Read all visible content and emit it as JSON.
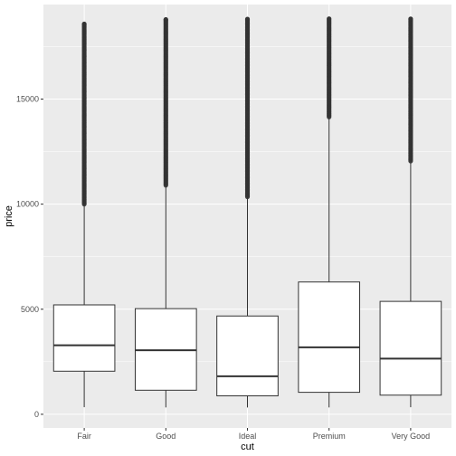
{
  "chart_data": {
    "type": "boxplot",
    "xlabel": "cut",
    "ylabel": "price",
    "ylim": [
      -650,
      19500
    ],
    "y_ticks": [
      0,
      5000,
      10000,
      15000
    ],
    "y_tick_labels": [
      "0",
      "5000",
      "10000",
      "15000"
    ],
    "categories": [
      "Fair",
      "Good",
      "Ideal",
      "Premium",
      "Very Good"
    ],
    "boxes": [
      {
        "category": "Fair",
        "whisker_low": 337,
        "q1": 2050,
        "median": 3282,
        "q3": 5206,
        "whisker_high": 9960,
        "outlier_min": 10000,
        "outlier_max": 18574
      },
      {
        "category": "Good",
        "whisker_low": 327,
        "q1": 1145,
        "median": 3050,
        "q3": 5028,
        "whisker_high": 10850,
        "outlier_min": 10900,
        "outlier_max": 18788
      },
      {
        "category": "Ideal",
        "whisker_low": 326,
        "q1": 878,
        "median": 1810,
        "q3": 4678,
        "whisker_high": 10350,
        "outlier_min": 10350,
        "outlier_max": 18806
      },
      {
        "category": "Premium",
        "whisker_low": 326,
        "q1": 1046,
        "median": 3185,
        "q3": 6296,
        "whisker_high": 14150,
        "outlier_min": 14150,
        "outlier_max": 18823
      },
      {
        "category": "Very Good",
        "whisker_low": 336,
        "q1": 912,
        "median": 2648,
        "q3": 5373,
        "whisker_high": 12050,
        "outlier_min": 12050,
        "outlier_max": 18818
      }
    ],
    "colors": {
      "panel": "#ebebeb",
      "grid_major": "#ffffff",
      "box_fill": "#ffffff",
      "box_line": "#333333",
      "outlier": "#333333"
    },
    "grid": true
  }
}
